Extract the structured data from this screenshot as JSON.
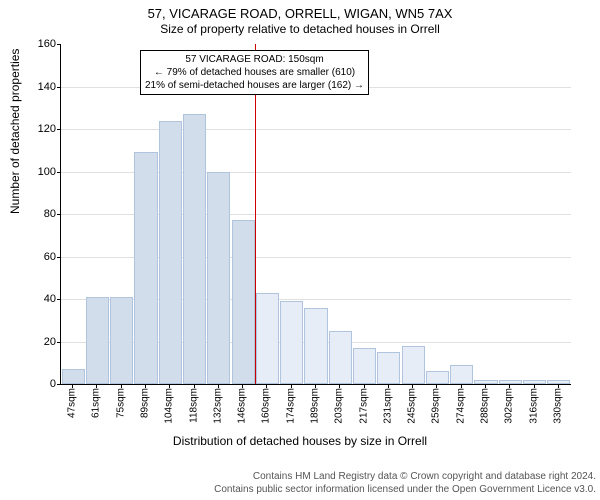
{
  "title": "57, VICARAGE ROAD, ORRELL, WIGAN, WN5 7AX",
  "subtitle": "Size of property relative to detached houses in Orrell",
  "ylabel": "Number of detached properties",
  "xlabel": "Distribution of detached houses by size in Orrell",
  "chart": {
    "type": "bar",
    "ylim": [
      0,
      160
    ],
    "ytick_step": 20,
    "background_color": "#ffffff",
    "grid_color": "#e0e0e0",
    "axis_fontsize": 11,
    "label_fontsize": 12,
    "xtick_rotation": -90,
    "categories": [
      "47sqm",
      "61sqm",
      "75sqm",
      "89sqm",
      "104sqm",
      "118sqm",
      "132sqm",
      "146sqm",
      "160sqm",
      "174sqm",
      "189sqm",
      "203sqm",
      "217sqm",
      "231sqm",
      "245sqm",
      "259sqm",
      "274sqm",
      "288sqm",
      "302sqm",
      "316sqm",
      "330sqm"
    ],
    "values": [
      7,
      41,
      41,
      109,
      124,
      127,
      100,
      77,
      43,
      39,
      36,
      25,
      17,
      15,
      18,
      6,
      9,
      2,
      2,
      2,
      2
    ],
    "bar_color_left": "#d2ddec",
    "bar_color_right": "#e6edf7",
    "bar_border_color": "#b0c4de",
    "bar_width": 0.95,
    "marker_after_index": 7,
    "marker_line_color": "#cc0000",
    "marker_line_width": 1
  },
  "callout": {
    "lines": [
      "57 VICARAGE ROAD: 150sqm",
      "← 79% of detached houses are smaller (610)",
      "21% of semi-detached houses are larger (162) →"
    ],
    "border_color": "#000000",
    "background_color": "#ffffff",
    "fontsize": 10
  },
  "footer": {
    "line1": "Contains HM Land Registry data © Crown copyright and database right 2024.",
    "line2": "Contains public sector information licensed under the Open Government Licence v3.0."
  }
}
